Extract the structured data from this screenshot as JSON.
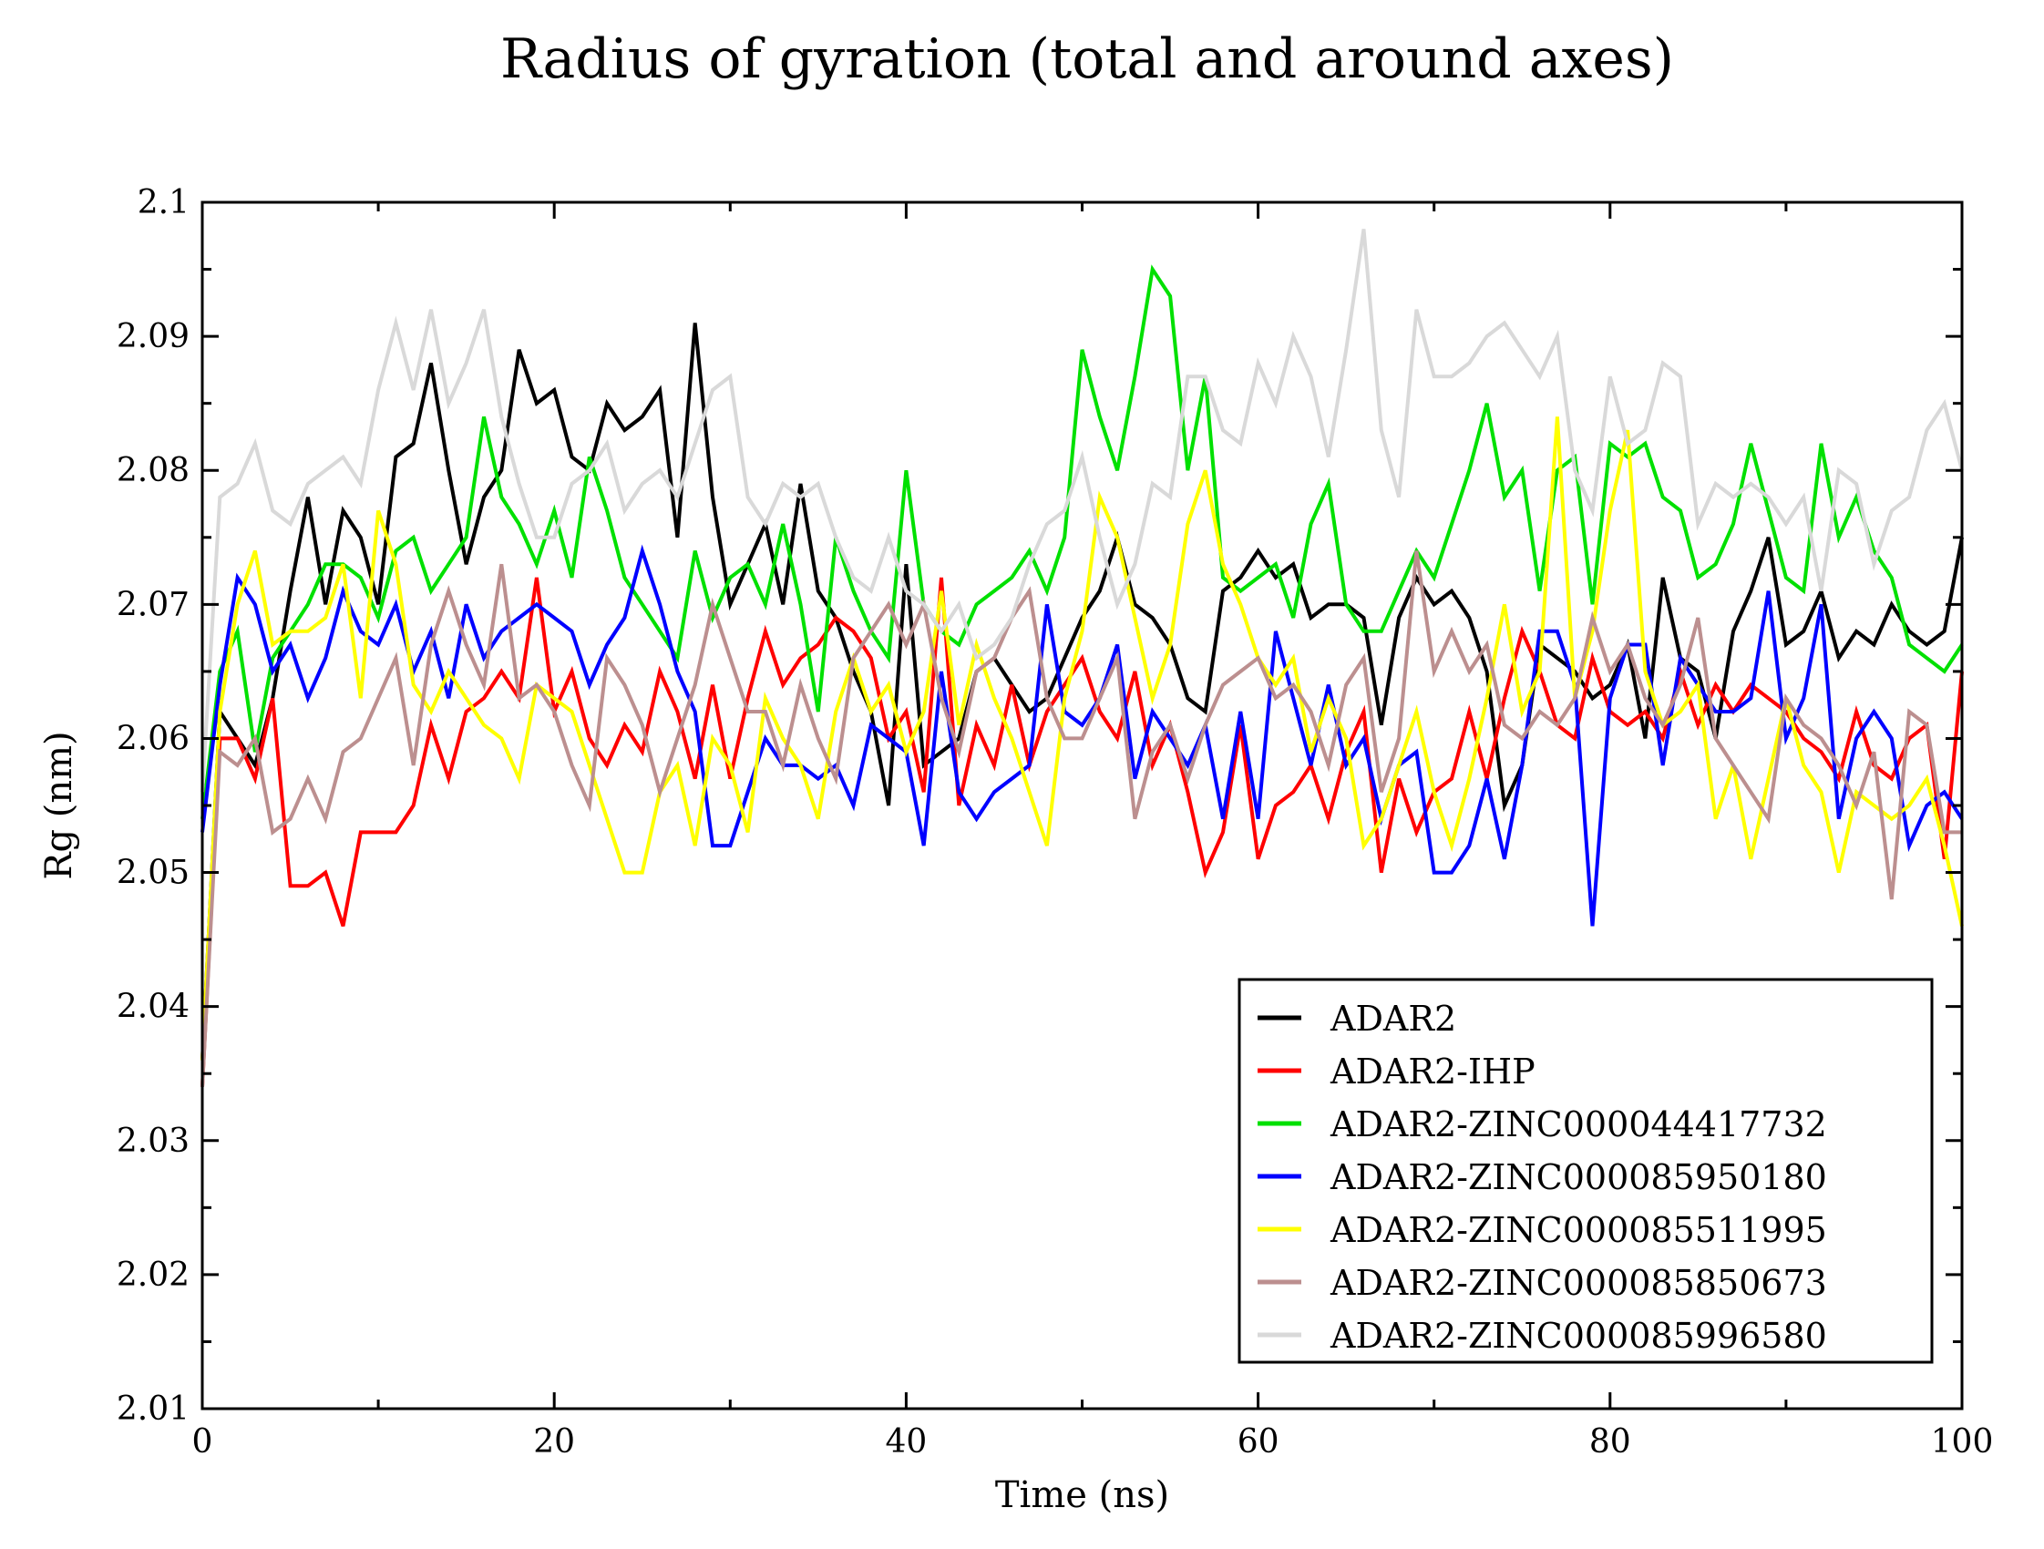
{
  "chart_data": {
    "type": "line",
    "title": "Radius of gyration (total and around axes)",
    "xlabel": "Time (ns)",
    "ylabel": "Rg (nm)",
    "xlim": [
      0,
      100
    ],
    "ylim": [
      2.01,
      2.1
    ],
    "xticks": [
      0,
      20,
      40,
      60,
      80,
      100
    ],
    "yticks": [
      2.01,
      2.02,
      2.03,
      2.04,
      2.05,
      2.06,
      2.07,
      2.08,
      2.09,
      2.1
    ],
    "xtick_labels": [
      "0",
      "20",
      "40",
      "60",
      "80",
      "100"
    ],
    "ytick_labels": [
      "2.01",
      "2.02",
      "2.03",
      "2.04",
      "2.05",
      "2.06",
      "2.07",
      "2.08",
      "2.09",
      "2.1"
    ],
    "legend_position": "bottom-right",
    "grid": false,
    "x": [
      0,
      1,
      2,
      3,
      4,
      5,
      6,
      7,
      8,
      9,
      10,
      11,
      12,
      13,
      14,
      15,
      16,
      17,
      18,
      19,
      20,
      21,
      22,
      23,
      24,
      25,
      26,
      27,
      28,
      29,
      30,
      31,
      32,
      33,
      34,
      35,
      36,
      37,
      38,
      39,
      40,
      41,
      42,
      43,
      44,
      45,
      46,
      47,
      48,
      49,
      50,
      51,
      52,
      53,
      54,
      55,
      56,
      57,
      58,
      59,
      60,
      61,
      62,
      63,
      64,
      65,
      66,
      67,
      68,
      69,
      70,
      71,
      72,
      73,
      74,
      75,
      76,
      77,
      78,
      79,
      80,
      81,
      82,
      83,
      84,
      85,
      86,
      87,
      88,
      89,
      90,
      91,
      92,
      93,
      94,
      95,
      96,
      97,
      98,
      99,
      100
    ],
    "series": [
      {
        "name": "ADAR2",
        "color": "#000000",
        "values": [
          2.036,
          2.062,
          2.06,
          2.058,
          2.063,
          2.071,
          2.078,
          2.07,
          2.077,
          2.075,
          2.07,
          2.081,
          2.082,
          2.088,
          2.08,
          2.073,
          2.078,
          2.08,
          2.089,
          2.085,
          2.086,
          2.081,
          2.08,
          2.085,
          2.083,
          2.084,
          2.086,
          2.075,
          2.091,
          2.078,
          2.07,
          2.073,
          2.076,
          2.07,
          2.079,
          2.071,
          2.069,
          2.065,
          2.062,
          2.055,
          2.073,
          2.058,
          2.059,
          2.06,
          2.065,
          2.066,
          2.064,
          2.062,
          2.063,
          2.066,
          2.069,
          2.071,
          2.075,
          2.07,
          2.069,
          2.067,
          2.063,
          2.062,
          2.071,
          2.072,
          2.074,
          2.072,
          2.073,
          2.069,
          2.07,
          2.07,
          2.069,
          2.061,
          2.069,
          2.072,
          2.07,
          2.071,
          2.069,
          2.065,
          2.055,
          2.058,
          2.067,
          2.066,
          2.065,
          2.063,
          2.064,
          2.067,
          2.06,
          2.072,
          2.066,
          2.065,
          2.06,
          2.068,
          2.071,
          2.075,
          2.067,
          2.068,
          2.071,
          2.066,
          2.068,
          2.067,
          2.07,
          2.068,
          2.067,
          2.068,
          2.075
        ]
      },
      {
        "name": "ADAR2-IHP",
        "color": "#ff0000",
        "values": [
          2.034,
          2.06,
          2.06,
          2.057,
          2.063,
          2.049,
          2.049,
          2.05,
          2.046,
          2.053,
          2.053,
          2.053,
          2.055,
          2.061,
          2.057,
          2.062,
          2.063,
          2.065,
          2.063,
          2.072,
          2.062,
          2.065,
          2.06,
          2.058,
          2.061,
          2.059,
          2.065,
          2.062,
          2.057,
          2.064,
          2.057,
          2.063,
          2.068,
          2.064,
          2.066,
          2.067,
          2.069,
          2.068,
          2.066,
          2.06,
          2.062,
          2.056,
          2.072,
          2.055,
          2.061,
          2.058,
          2.064,
          2.058,
          2.062,
          2.064,
          2.066,
          2.062,
          2.06,
          2.065,
          2.058,
          2.061,
          2.056,
          2.05,
          2.053,
          2.061,
          2.051,
          2.055,
          2.056,
          2.058,
          2.054,
          2.059,
          2.062,
          2.05,
          2.057,
          2.053,
          2.056,
          2.057,
          2.062,
          2.057,
          2.063,
          2.068,
          2.065,
          2.061,
          2.06,
          2.066,
          2.062,
          2.061,
          2.062,
          2.06,
          2.065,
          2.061,
          2.064,
          2.062,
          2.064,
          2.063,
          2.062,
          2.06,
          2.059,
          2.057,
          2.062,
          2.058,
          2.057,
          2.06,
          2.061,
          2.051,
          2.065
        ]
      },
      {
        "name": "ADAR2-ZINC000044417732",
        "color": "#00e000",
        "values": [
          2.054,
          2.065,
          2.068,
          2.059,
          2.066,
          2.068,
          2.07,
          2.073,
          2.073,
          2.072,
          2.069,
          2.074,
          2.075,
          2.071,
          2.073,
          2.075,
          2.084,
          2.078,
          2.076,
          2.073,
          2.077,
          2.072,
          2.081,
          2.077,
          2.072,
          2.07,
          2.068,
          2.066,
          2.074,
          2.069,
          2.072,
          2.073,
          2.07,
          2.076,
          2.07,
          2.062,
          2.075,
          2.071,
          2.068,
          2.066,
          2.08,
          2.07,
          2.068,
          2.067,
          2.07,
          2.071,
          2.072,
          2.074,
          2.071,
          2.075,
          2.089,
          2.084,
          2.08,
          2.087,
          2.095,
          2.093,
          2.08,
          2.087,
          2.072,
          2.071,
          2.072,
          2.073,
          2.069,
          2.076,
          2.079,
          2.07,
          2.068,
          2.068,
          2.071,
          2.074,
          2.072,
          2.076,
          2.08,
          2.085,
          2.078,
          2.08,
          2.071,
          2.08,
          2.081,
          2.07,
          2.082,
          2.081,
          2.082,
          2.078,
          2.077,
          2.072,
          2.073,
          2.076,
          2.082,
          2.077,
          2.072,
          2.071,
          2.082,
          2.075,
          2.078,
          2.074,
          2.072,
          2.067,
          2.066,
          2.065,
          2.067
        ]
      },
      {
        "name": "ADAR2-ZINC000085950180",
        "color": "#0000ff",
        "values": [
          2.053,
          2.064,
          2.072,
          2.07,
          2.065,
          2.067,
          2.063,
          2.066,
          2.071,
          2.068,
          2.067,
          2.07,
          2.065,
          2.068,
          2.063,
          2.07,
          2.066,
          2.068,
          2.069,
          2.07,
          2.069,
          2.068,
          2.064,
          2.067,
          2.069,
          2.074,
          2.07,
          2.065,
          2.062,
          2.052,
          2.052,
          2.056,
          2.06,
          2.058,
          2.058,
          2.057,
          2.058,
          2.055,
          2.061,
          2.06,
          2.059,
          2.052,
          2.065,
          2.056,
          2.054,
          2.056,
          2.057,
          2.058,
          2.07,
          2.062,
          2.061,
          2.063,
          2.067,
          2.057,
          2.062,
          2.06,
          2.058,
          2.061,
          2.054,
          2.062,
          2.054,
          2.068,
          2.063,
          2.058,
          2.064,
          2.058,
          2.06,
          2.054,
          2.058,
          2.059,
          2.05,
          2.05,
          2.052,
          2.057,
          2.051,
          2.058,
          2.068,
          2.068,
          2.064,
          2.046,
          2.063,
          2.067,
          2.067,
          2.058,
          2.066,
          2.064,
          2.062,
          2.062,
          2.063,
          2.071,
          2.06,
          2.063,
          2.07,
          2.054,
          2.06,
          2.062,
          2.06,
          2.052,
          2.055,
          2.056,
          2.054
        ]
      },
      {
        "name": "ADAR2-ZINC000085511995",
        "color": "#ffff00",
        "values": [
          2.036,
          2.062,
          2.07,
          2.074,
          2.067,
          2.068,
          2.068,
          2.069,
          2.073,
          2.063,
          2.077,
          2.073,
          2.064,
          2.062,
          2.065,
          2.063,
          2.061,
          2.06,
          2.057,
          2.064,
          2.063,
          2.062,
          2.058,
          2.054,
          2.05,
          2.05,
          2.056,
          2.058,
          2.052,
          2.06,
          2.058,
          2.053,
          2.063,
          2.06,
          2.058,
          2.054,
          2.062,
          2.066,
          2.062,
          2.064,
          2.059,
          2.062,
          2.071,
          2.061,
          2.067,
          2.063,
          2.06,
          2.056,
          2.052,
          2.063,
          2.068,
          2.078,
          2.075,
          2.069,
          2.063,
          2.067,
          2.076,
          2.08,
          2.073,
          2.07,
          2.066,
          2.064,
          2.066,
          2.059,
          2.063,
          2.06,
          2.052,
          2.054,
          2.058,
          2.062,
          2.056,
          2.052,
          2.057,
          2.063,
          2.07,
          2.062,
          2.065,
          2.084,
          2.063,
          2.068,
          2.077,
          2.083,
          2.065,
          2.061,
          2.062,
          2.064,
          2.054,
          2.058,
          2.051,
          2.057,
          2.063,
          2.058,
          2.056,
          2.05,
          2.056,
          2.055,
          2.054,
          2.055,
          2.057,
          2.052,
          2.046
        ]
      },
      {
        "name": "ADAR2-ZINC000085850673",
        "color": "#bc8f8f",
        "values": [
          2.034,
          2.059,
          2.058,
          2.06,
          2.053,
          2.054,
          2.057,
          2.054,
          2.059,
          2.06,
          2.063,
          2.066,
          2.058,
          2.067,
          2.071,
          2.067,
          2.064,
          2.073,
          2.063,
          2.064,
          2.062,
          2.058,
          2.055,
          2.066,
          2.064,
          2.061,
          2.056,
          2.06,
          2.064,
          2.07,
          2.066,
          2.062,
          2.062,
          2.058,
          2.064,
          2.06,
          2.057,
          2.066,
          2.068,
          2.07,
          2.067,
          2.07,
          2.063,
          2.059,
          2.065,
          2.066,
          2.069,
          2.071,
          2.063,
          2.06,
          2.06,
          2.063,
          2.066,
          2.054,
          2.059,
          2.061,
          2.057,
          2.061,
          2.064,
          2.065,
          2.066,
          2.063,
          2.064,
          2.062,
          2.058,
          2.064,
          2.066,
          2.056,
          2.06,
          2.074,
          2.065,
          2.068,
          2.065,
          2.067,
          2.061,
          2.06,
          2.062,
          2.061,
          2.063,
          2.069,
          2.065,
          2.067,
          2.063,
          2.061,
          2.064,
          2.069,
          2.06,
          2.058,
          2.056,
          2.054,
          2.063,
          2.061,
          2.06,
          2.058,
          2.055,
          2.059,
          2.048,
          2.062,
          2.061,
          2.053,
          2.053
        ]
      },
      {
        "name": "ADAR2-ZINC000085996580",
        "color": "#d9d9d9",
        "values": [
          2.056,
          2.078,
          2.079,
          2.082,
          2.077,
          2.076,
          2.079,
          2.08,
          2.081,
          2.079,
          2.086,
          2.091,
          2.086,
          2.092,
          2.085,
          2.088,
          2.092,
          2.084,
          2.079,
          2.075,
          2.075,
          2.079,
          2.08,
          2.082,
          2.077,
          2.079,
          2.08,
          2.078,
          2.082,
          2.086,
          2.087,
          2.078,
          2.076,
          2.079,
          2.078,
          2.079,
          2.075,
          2.072,
          2.071,
          2.075,
          2.071,
          2.07,
          2.068,
          2.07,
          2.066,
          2.067,
          2.069,
          2.073,
          2.076,
          2.077,
          2.081,
          2.075,
          2.07,
          2.073,
          2.079,
          2.078,
          2.087,
          2.087,
          2.083,
          2.082,
          2.088,
          2.085,
          2.09,
          2.087,
          2.081,
          2.089,
          2.098,
          2.083,
          2.078,
          2.092,
          2.087,
          2.087,
          2.088,
          2.09,
          2.091,
          2.089,
          2.087,
          2.09,
          2.08,
          2.077,
          2.087,
          2.082,
          2.083,
          2.088,
          2.087,
          2.076,
          2.079,
          2.078,
          2.079,
          2.078,
          2.076,
          2.078,
          2.071,
          2.08,
          2.079,
          2.073,
          2.077,
          2.078,
          2.083,
          2.085,
          2.08
        ]
      }
    ]
  }
}
